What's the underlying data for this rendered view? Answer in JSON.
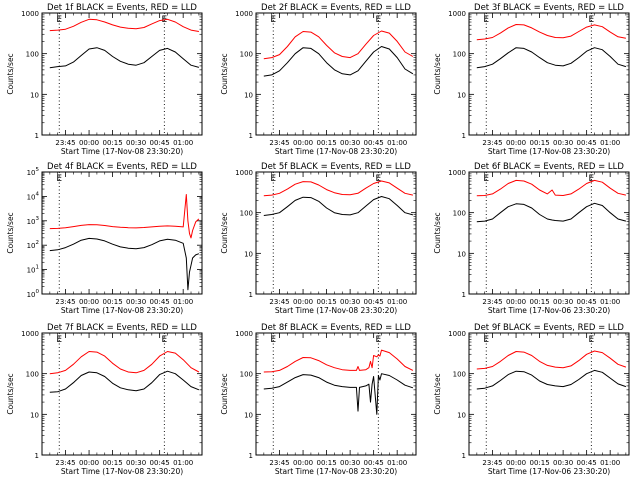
{
  "colors": {
    "events": "#000000",
    "lld": "#ff0000",
    "axis": "#000000",
    "marker": "#000000"
  },
  "chart_data": [
    {
      "type": "line",
      "title": "Det 1f BLACK = Events, RED = LLD",
      "xlabel": "Start Time (17-Nov-08 23:30:20)",
      "ylabel": "Counts/sec",
      "xlim": [
        "23:30",
        "01:12"
      ],
      "ylim": [
        1,
        1000
      ],
      "yscale": "log",
      "xticks": [
        "23:45",
        "00:00",
        "00:15",
        "00:30",
        "00:45",
        "01:00"
      ],
      "yticks": [
        "1",
        "10",
        "100",
        "1000"
      ],
      "markers": [
        {
          "time": "23:41",
          "label": "E"
        },
        {
          "time": "00:48",
          "label": "E"
        }
      ],
      "x": [
        "23:35",
        "23:40",
        "23:45",
        "23:50",
        "23:55",
        "00:00",
        "00:05",
        "00:10",
        "00:15",
        "00:20",
        "00:25",
        "00:30",
        "00:35",
        "00:40",
        "00:45",
        "00:50",
        "00:55",
        "01:00",
        "01:05",
        "01:10"
      ],
      "series": [
        {
          "name": "LLD",
          "values": [
            370,
            380,
            400,
            470,
            590,
            700,
            680,
            600,
            510,
            450,
            420,
            410,
            440,
            540,
            650,
            700,
            600,
            460,
            380,
            350
          ]
        },
        {
          "name": "Events",
          "values": [
            45,
            48,
            50,
            62,
            90,
            130,
            140,
            120,
            85,
            65,
            55,
            52,
            60,
            85,
            120,
            135,
            110,
            75,
            52,
            46
          ]
        }
      ]
    },
    {
      "type": "line",
      "title": "Det 2f BLACK = Events, RED = LLD",
      "xlabel": "Start Time (17-Nov-08 23:30:20)",
      "ylabel": "Counts/sec",
      "xlim": [
        "23:30",
        "01:12"
      ],
      "ylim": [
        1,
        1000
      ],
      "yscale": "log",
      "xticks": [
        "23:45",
        "00:00",
        "00:15",
        "00:30",
        "00:45",
        "01:00"
      ],
      "yticks": [
        "1",
        "10",
        "100",
        "1000"
      ],
      "markers": [
        {
          "time": "23:41",
          "label": "E"
        },
        {
          "time": "00:48",
          "label": "E"
        }
      ],
      "x": [
        "23:35",
        "23:40",
        "23:45",
        "23:50",
        "23:55",
        "00:00",
        "00:05",
        "00:10",
        "00:15",
        "00:20",
        "00:25",
        "00:30",
        "00:35",
        "00:40",
        "00:45",
        "00:50",
        "00:55",
        "01:00",
        "01:05",
        "01:10"
      ],
      "series": [
        {
          "name": "LLD",
          "values": [
            75,
            80,
            95,
            150,
            260,
            350,
            340,
            260,
            160,
            105,
            85,
            80,
            100,
            170,
            280,
            360,
            320,
            200,
            110,
            85
          ]
        },
        {
          "name": "Events",
          "values": [
            28,
            30,
            38,
            60,
            100,
            140,
            135,
            100,
            60,
            40,
            32,
            30,
            38,
            65,
            110,
            150,
            130,
            80,
            42,
            32
          ]
        }
      ]
    },
    {
      "type": "line",
      "title": "Det 3f BLACK = Events, RED = LLD",
      "xlabel": "Start Time (17-Nov-08 23:30:20)",
      "ylabel": "Counts/sec",
      "xlim": [
        "23:30",
        "01:12"
      ],
      "ylim": [
        1,
        1000
      ],
      "yscale": "log",
      "xticks": [
        "23:45",
        "00:00",
        "00:15",
        "00:30",
        "00:45",
        "01:00"
      ],
      "yticks": [
        "1",
        "10",
        "100",
        "1000"
      ],
      "markers": [
        {
          "time": "23:41",
          "label": "E"
        },
        {
          "time": "00:48",
          "label": "E"
        }
      ],
      "x": [
        "23:35",
        "23:40",
        "23:45",
        "23:50",
        "23:55",
        "00:00",
        "00:05",
        "00:10",
        "00:15",
        "00:20",
        "00:25",
        "00:30",
        "00:35",
        "00:40",
        "00:45",
        "00:50",
        "00:55",
        "01:00",
        "01:05",
        "01:10"
      ],
      "series": [
        {
          "name": "LLD",
          "values": [
            220,
            230,
            250,
            320,
            430,
            520,
            510,
            430,
            340,
            280,
            250,
            245,
            270,
            350,
            450,
            510,
            460,
            340,
            260,
            240
          ]
        },
        {
          "name": "Events",
          "values": [
            45,
            48,
            55,
            75,
            105,
            140,
            135,
            110,
            80,
            60,
            52,
            50,
            58,
            80,
            115,
            140,
            125,
            85,
            55,
            48
          ]
        }
      ]
    },
    {
      "type": "line",
      "title": "Det 4f BLACK = Events, RED = LLD",
      "xlabel": "Start Time (17-Nov-08 23:30:20)",
      "ylabel": "Counts/sec",
      "xlim": [
        "23:30",
        "01:12"
      ],
      "ylim": [
        1,
        100000
      ],
      "yscale": "log",
      "xticks": [
        "23:45",
        "00:00",
        "00:15",
        "00:30",
        "00:45",
        "01:00"
      ],
      "yticks": [
        "10^0",
        "10^1",
        "10^2",
        "10^3",
        "10^4",
        "10^5"
      ],
      "markers": [
        {
          "time": "23:41",
          "label": "E"
        }
      ],
      "x": [
        "23:35",
        "23:40",
        "23:45",
        "23:50",
        "23:55",
        "00:00",
        "00:05",
        "00:10",
        "00:15",
        "00:20",
        "00:25",
        "00:30",
        "00:35",
        "00:40",
        "00:45",
        "00:50",
        "00:55",
        "01:00",
        "01:02",
        "01:03",
        "01:04",
        "01:05",
        "01:06",
        "01:08",
        "01:10"
      ],
      "series": [
        {
          "name": "LLD",
          "values": [
            480,
            490,
            520,
            580,
            650,
            700,
            690,
            640,
            580,
            540,
            520,
            510,
            530,
            560,
            600,
            620,
            600,
            560,
            12000,
            1000,
            300,
            200,
            400,
            900,
            1200
          ]
        },
        {
          "name": "Events",
          "values": [
            60,
            65,
            80,
            110,
            160,
            190,
            180,
            150,
            110,
            85,
            75,
            72,
            80,
            105,
            150,
            175,
            160,
            120,
            30,
            1.5,
            8,
            15,
            30,
            40,
            45
          ]
        }
      ]
    },
    {
      "type": "line",
      "title": "Det 5f BLACK = Events, RED = LLD",
      "xlabel": "Start Time (17-Nov-08 23:30:20)",
      "ylabel": "Counts/sec",
      "xlim": [
        "23:30",
        "01:12"
      ],
      "ylim": [
        1,
        1000
      ],
      "yscale": "log",
      "xticks": [
        "23:45",
        "00:00",
        "00:15",
        "00:30",
        "00:45",
        "01:00"
      ],
      "yticks": [
        "1",
        "10",
        "100",
        "1000"
      ],
      "markers": [
        {
          "time": "23:41",
          "label": "E"
        },
        {
          "time": "00:48",
          "label": "E"
        }
      ],
      "x": [
        "23:35",
        "23:40",
        "23:45",
        "23:50",
        "23:55",
        "00:00",
        "00:05",
        "00:10",
        "00:15",
        "00:20",
        "00:25",
        "00:30",
        "00:35",
        "00:40",
        "00:45",
        "00:50",
        "00:55",
        "01:00",
        "01:05",
        "01:10"
      ],
      "series": [
        {
          "name": "LLD",
          "values": [
            260,
            270,
            300,
            380,
            500,
            580,
            570,
            480,
            370,
            310,
            280,
            275,
            300,
            400,
            520,
            600,
            540,
            400,
            300,
            270
          ]
        },
        {
          "name": "Events",
          "values": [
            85,
            90,
            100,
            140,
            200,
            240,
            235,
            190,
            130,
            100,
            90,
            88,
            100,
            145,
            210,
            250,
            220,
            150,
            100,
            88
          ]
        }
      ]
    },
    {
      "type": "line",
      "title": "Det 6f BLACK = Events, RED = LLD",
      "xlabel": "Start Time (17-Nov-06 23:30:20)",
      "ylabel": "Counts/sec",
      "xlim": [
        "23:30",
        "01:12"
      ],
      "ylim": [
        1,
        1000
      ],
      "yscale": "log",
      "xticks": [
        "23:45",
        "00:00",
        "00:15",
        "00:30",
        "00:45",
        "01:00"
      ],
      "yticks": [
        "1",
        "10",
        "100",
        "1000"
      ],
      "markers": [
        {
          "time": "23:41",
          "label": "E"
        },
        {
          "time": "00:48",
          "label": "E"
        }
      ],
      "x": [
        "23:35",
        "23:40",
        "23:45",
        "23:50",
        "23:55",
        "00:00",
        "00:05",
        "00:10",
        "00:15",
        "00:20",
        "00:23",
        "00:25",
        "00:30",
        "00:35",
        "00:40",
        "00:45",
        "00:50",
        "00:55",
        "01:00",
        "01:05",
        "01:10"
      ],
      "series": [
        {
          "name": "LLD",
          "values": [
            260,
            265,
            290,
            380,
            520,
            620,
            600,
            500,
            360,
            290,
            360,
            270,
            265,
            290,
            380,
            520,
            620,
            560,
            400,
            300,
            270
          ]
        },
        {
          "name": "Events",
          "values": [
            60,
            62,
            70,
            100,
            140,
            165,
            160,
            130,
            90,
            70,
            66,
            64,
            62,
            70,
            100,
            140,
            170,
            150,
            100,
            70,
            62
          ]
        }
      ]
    },
    {
      "type": "line",
      "title": "Det 7f BLACK = Events, RED = LLD",
      "xlabel": "Start Time (17-Nov-08 23:30:20)",
      "ylabel": "Counts/sec",
      "xlim": [
        "23:30",
        "01:12"
      ],
      "ylim": [
        1,
        1000
      ],
      "yscale": "log",
      "xticks": [
        "23:45",
        "00:00",
        "00:15",
        "00:30",
        "00:45",
        "01:00"
      ],
      "yticks": [
        "1",
        "10",
        "100",
        "1000"
      ],
      "markers": [
        {
          "time": "23:41",
          "label": "E"
        },
        {
          "time": "00:48",
          "label": "E"
        }
      ],
      "x": [
        "23:35",
        "23:40",
        "23:45",
        "23:50",
        "23:55",
        "00:00",
        "00:05",
        "00:10",
        "00:15",
        "00:20",
        "00:25",
        "00:30",
        "00:35",
        "00:40",
        "00:45",
        "00:50",
        "00:55",
        "01:00",
        "01:05",
        "01:10"
      ],
      "series": [
        {
          "name": "LLD",
          "values": [
            100,
            105,
            120,
            170,
            260,
            350,
            340,
            270,
            180,
            130,
            110,
            105,
            120,
            170,
            270,
            350,
            320,
            220,
            140,
            110
          ]
        },
        {
          "name": "Events",
          "values": [
            35,
            36,
            42,
            60,
            90,
            110,
            105,
            85,
            58,
            45,
            40,
            38,
            42,
            60,
            95,
            115,
            100,
            70,
            48,
            40
          ]
        }
      ]
    },
    {
      "type": "line",
      "title": "Det 8f BLACK = Events, RED = LLD",
      "xlabel": "Start Time (17-Nov-08 23:30:20)",
      "ylabel": "Counts/sec",
      "xlim": [
        "23:30",
        "01:12"
      ],
      "ylim": [
        1,
        1000
      ],
      "yscale": "log",
      "xticks": [
        "23:45",
        "00:00",
        "00:15",
        "00:30",
        "00:45",
        "01:00"
      ],
      "yticks": [
        "1",
        "10",
        "100",
        "1000"
      ],
      "markers": [
        {
          "time": "23:41",
          "label": "E"
        },
        {
          "time": "00:48",
          "label": "E"
        }
      ],
      "x": [
        "23:35",
        "23:40",
        "23:45",
        "23:50",
        "23:55",
        "00:00",
        "00:05",
        "00:10",
        "00:15",
        "00:20",
        "00:25",
        "00:30",
        "00:34",
        "00:35",
        "00:36",
        "00:40",
        "00:42",
        "00:43",
        "00:44",
        "00:45",
        "00:47",
        "00:48",
        "00:49",
        "00:50",
        "00:55",
        "01:00",
        "01:05",
        "01:10"
      ],
      "series": [
        {
          "name": "LLD",
          "values": [
            110,
            112,
            120,
            150,
            200,
            250,
            245,
            210,
            165,
            140,
            125,
            120,
            120,
            150,
            120,
            125,
            140,
            200,
            140,
            280,
            260,
            290,
            270,
            380,
            330,
            230,
            150,
            120
          ]
        },
        {
          "name": "Events",
          "values": [
            42,
            44,
            48,
            62,
            80,
            95,
            92,
            80,
            62,
            52,
            48,
            46,
            46,
            12,
            46,
            50,
            55,
            20,
            55,
            85,
            10,
            90,
            70,
            100,
            90,
            70,
            52,
            45
          ]
        }
      ]
    },
    {
      "type": "line",
      "title": "Det 9f BLACK = Events, RED = LLD",
      "xlabel": "Start Time (17-Nov-06 23:30:20)",
      "ylabel": "Counts/sec",
      "xlim": [
        "23:30",
        "01:12"
      ],
      "ylim": [
        1,
        1000
      ],
      "yscale": "log",
      "xticks": [
        "23:45",
        "00:00",
        "00:15",
        "00:30",
        "00:45",
        "01:00"
      ],
      "yticks": [
        "1",
        "10",
        "100",
        "1000"
      ],
      "markers": [
        {
          "time": "23:41",
          "label": "E"
        },
        {
          "time": "00:48",
          "label": "E"
        }
      ],
      "x": [
        "23:35",
        "23:40",
        "23:45",
        "23:50",
        "23:55",
        "00:00",
        "00:05",
        "00:10",
        "00:15",
        "00:20",
        "00:25",
        "00:30",
        "00:35",
        "00:40",
        "00:45",
        "00:50",
        "00:55",
        "01:00",
        "01:05",
        "01:10"
      ],
      "series": [
        {
          "name": "LLD",
          "values": [
            130,
            135,
            150,
            200,
            280,
            350,
            340,
            280,
            200,
            160,
            145,
            140,
            155,
            210,
            300,
            360,
            330,
            240,
            170,
            145
          ]
        },
        {
          "name": "Events",
          "values": [
            42,
            44,
            50,
            68,
            95,
            115,
            112,
            92,
            66,
            54,
            50,
            48,
            54,
            72,
            100,
            120,
            108,
            78,
            56,
            48
          ]
        }
      ]
    }
  ]
}
